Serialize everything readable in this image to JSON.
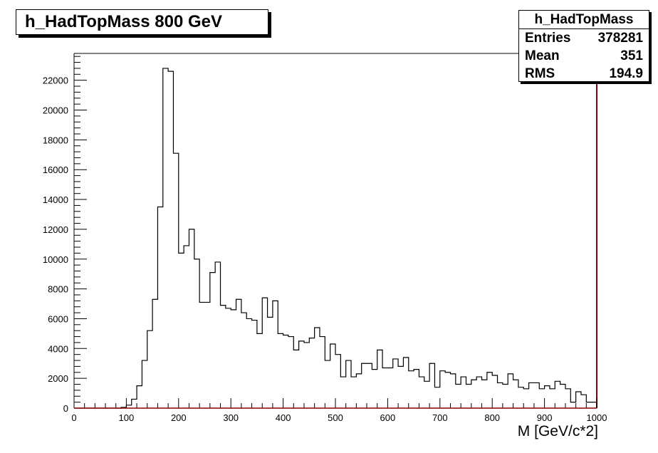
{
  "title": "h_HadTopMass 800 GeV",
  "stats": {
    "name": "h_HadTopMass",
    "rows": [
      {
        "label": "Entries",
        "value": "378281"
      },
      {
        "label": "Mean",
        "value": "351"
      },
      {
        "label": "RMS",
        "value": "194.9"
      }
    ]
  },
  "colors": {
    "frame_right": "#8b0000",
    "zero_line": "#8b0000",
    "hist": "#000000"
  },
  "chart_data": {
    "type": "bar",
    "xlabel": "M [GeV/c*2]",
    "ylabel": "",
    "xlim": [
      0,
      1000
    ],
    "ylim": [
      0,
      23800
    ],
    "bin_width": 10,
    "x_ticks": [
      "0",
      "100",
      "200",
      "300",
      "400",
      "500",
      "600",
      "700",
      "800",
      "900",
      "1000"
    ],
    "y_ticks": [
      "0",
      "2000",
      "4000",
      "6000",
      "8000",
      "10000",
      "12000",
      "14000",
      "16000",
      "18000",
      "20000",
      "22000"
    ],
    "grid": false,
    "values": [
      0,
      0,
      0,
      0,
      0,
      0,
      0,
      0,
      0,
      50,
      200,
      600,
      1500,
      3200,
      5200,
      7300,
      13500,
      22800,
      22600,
      17100,
      10400,
      10900,
      12000,
      10000,
      7100,
      7100,
      9100,
      9800,
      6900,
      6700,
      6600,
      7300,
      6400,
      6000,
      5900,
      5000,
      7400,
      6100,
      7200,
      5000,
      4900,
      4800,
      3900,
      4500,
      4400,
      4700,
      5400,
      4800,
      3200,
      4300,
      3600,
      2100,
      3200,
      2100,
      2300,
      3000,
      3000,
      2600,
      3900,
      2700,
      2700,
      3300,
      2800,
      3400,
      2500,
      2600,
      2100,
      1800,
      3000,
      1400,
      2500,
      2400,
      2300,
      1600,
      2100,
      1600,
      1900,
      2100,
      1900,
      2400,
      2200,
      1700,
      1600,
      2300,
      1900,
      1400,
      1300,
      1700,
      1700,
      1300,
      1500,
      1300,
      1800,
      1600,
      1300,
      400,
      1100,
      900,
      400,
      400
    ]
  }
}
